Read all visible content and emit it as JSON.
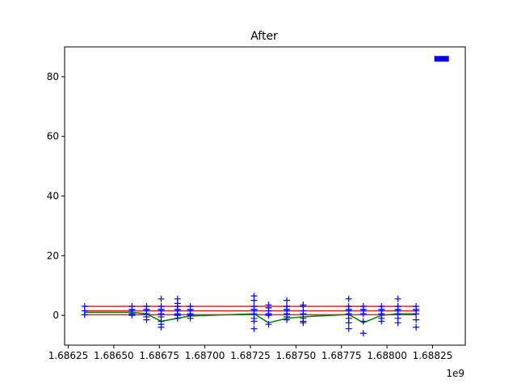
{
  "chart_data": {
    "type": "line",
    "title": "After",
    "xlabel": "",
    "ylabel": "",
    "x_offset_label": "1e9",
    "xlim": [
      1.68623,
      1.68843
    ],
    "ylim": [
      -10,
      90
    ],
    "grid": false,
    "x_ticks": [
      1.68625,
      1.6865,
      1.68675,
      1.687,
      1.68725,
      1.6875,
      1.68775,
      1.688,
      1.68825
    ],
    "x_tick_labels": [
      "1.68625",
      "1.68650",
      "1.68675",
      "1.68700",
      "1.68725",
      "1.68750",
      "1.68775",
      "1.68800",
      "1.68825"
    ],
    "y_ticks": [
      0,
      20,
      40,
      60,
      80
    ],
    "y_tick_labels": [
      "0",
      "20",
      "40",
      "60",
      "80"
    ],
    "series": [
      {
        "style": "line",
        "color": "#d62728",
        "x": [
          1.68634,
          1.68816
        ],
        "y": [
          3.0,
          3.0
        ]
      },
      {
        "style": "line",
        "color": "#d62728",
        "x": [
          1.68634,
          1.68816
        ],
        "y": [
          1.5,
          1.5
        ]
      },
      {
        "style": "line",
        "color": "#d62728",
        "x": [
          1.68634,
          1.68816
        ],
        "y": [
          0.2,
          0.2
        ]
      },
      {
        "style": "line",
        "color": "#008000",
        "x": [
          1.68634,
          1.6866,
          1.68668,
          1.68676,
          1.68685,
          1.68692,
          1.68727,
          1.68735,
          1.68745,
          1.68754,
          1.68779,
          1.68787,
          1.68797,
          1.68806,
          1.68816
        ],
        "y": [
          1.0,
          1.0,
          0.5,
          -2.0,
          -1.0,
          -0.2,
          0.5,
          -2.5,
          -1.0,
          -0.5,
          0.3,
          -2.5,
          0.0,
          0.5,
          0.5
        ]
      },
      {
        "style": "markers",
        "marker": "+",
        "color": "#0000ff",
        "x": [
          1.68634,
          1.68634,
          1.68634,
          1.6866,
          1.6866,
          1.6866,
          1.6866,
          1.6866,
          1.68668,
          1.68668,
          1.68668,
          1.68668,
          1.68668,
          1.68668,
          1.68676,
          1.68676,
          1.68676,
          1.68676,
          1.68676,
          1.68676,
          1.68676,
          1.68676,
          1.68676,
          1.68685,
          1.68685,
          1.68685,
          1.68685,
          1.68685,
          1.68685,
          1.68685,
          1.68685,
          1.68692,
          1.68692,
          1.68692,
          1.68692,
          1.68692,
          1.68692,
          1.68727,
          1.68727,
          1.68727,
          1.68727,
          1.68727,
          1.68727,
          1.68727,
          1.68727,
          1.68727,
          1.68735,
          1.68735,
          1.68735,
          1.68735,
          1.68735,
          1.68735,
          1.68745,
          1.68745,
          1.68745,
          1.68745,
          1.68745,
          1.68745,
          1.68745,
          1.68754,
          1.68754,
          1.68754,
          1.68754,
          1.68754,
          1.68754,
          1.68754,
          1.68779,
          1.68779,
          1.68779,
          1.68779,
          1.68779,
          1.68779,
          1.68779,
          1.68779,
          1.68787,
          1.68787,
          1.68787,
          1.68787,
          1.68787,
          1.68787,
          1.68797,
          1.68797,
          1.68797,
          1.68797,
          1.68797,
          1.68797,
          1.68806,
          1.68806,
          1.68806,
          1.68806,
          1.68806,
          1.68806,
          1.68806,
          1.68816,
          1.68816,
          1.68816,
          1.68816,
          1.68816,
          1.68816
        ],
        "y": [
          3.0,
          1.5,
          0.2,
          3.0,
          2.0,
          1.5,
          0.5,
          0.0,
          3.0,
          2.0,
          1.5,
          0.5,
          -0.5,
          -1.5,
          5.5,
          3.0,
          2.0,
          1.5,
          0.5,
          -0.5,
          -2.0,
          -3.0,
          -4.0,
          5.5,
          4.0,
          3.0,
          2.0,
          1.5,
          0.5,
          0.0,
          -1.0,
          3.0,
          2.0,
          1.5,
          0.5,
          0.0,
          -1.0,
          6.5,
          5.0,
          3.0,
          2.0,
          1.5,
          0.5,
          -1.0,
          -2.0,
          -4.5,
          3.5,
          2.5,
          1.5,
          0.5,
          0.0,
          -3.0,
          5.0,
          3.0,
          2.0,
          1.5,
          0.5,
          -0.5,
          -1.5,
          3.5,
          3.0,
          1.5,
          0.5,
          -1.0,
          -2.0,
          -2.5,
          5.5,
          3.0,
          2.0,
          1.5,
          0.5,
          -1.0,
          -2.5,
          -4.5,
          3.0,
          2.0,
          1.5,
          0.5,
          -2.0,
          -6.0,
          3.0,
          2.0,
          1.5,
          0.5,
          -1.0,
          -2.0,
          5.5,
          3.0,
          2.0,
          1.5,
          0.5,
          -1.0,
          -2.5,
          3.0,
          2.0,
          1.5,
          0.5,
          -1.5,
          -4.0
        ]
      },
      {
        "style": "line",
        "color": "#0000ff",
        "width": 7,
        "x": [
          1.68826,
          1.68834
        ],
        "y": [
          86,
          86
        ]
      }
    ]
  }
}
